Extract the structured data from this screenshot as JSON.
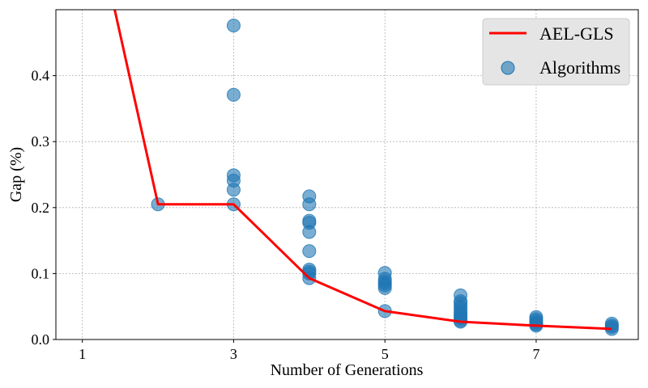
{
  "chart_data": {
    "type": "scatter",
    "title": "",
    "xlabel": "Number of Generations",
    "ylabel": "Gap (%)",
    "xlim": [
      0.65,
      8.35
    ],
    "ylim": [
      0.0,
      0.5
    ],
    "xticks": [
      1,
      3,
      5,
      7
    ],
    "yticks": [
      0.0,
      0.1,
      0.2,
      0.3,
      0.4
    ],
    "grid": true,
    "legend_position": "top-right",
    "series": [
      {
        "name": "AEL-GLS",
        "kind": "line",
        "color": "#ff0000",
        "x": [
          1,
          2,
          3,
          4,
          5,
          6,
          7,
          8
        ],
        "y": [
          0.72,
          0.205,
          0.205,
          0.093,
          0.043,
          0.027,
          0.021,
          0.016
        ]
      },
      {
        "name": "Algorithms",
        "kind": "scatter",
        "color": "#1f77b4",
        "x": [
          2,
          3,
          3,
          3,
          3,
          3,
          3,
          4,
          4,
          4,
          4,
          4,
          4,
          4,
          4,
          4,
          4,
          5,
          5,
          5,
          5,
          5,
          5,
          5,
          6,
          6,
          6,
          6,
          6,
          6,
          6,
          6,
          6,
          6,
          6,
          7,
          7,
          7,
          7,
          7,
          7,
          8,
          8,
          8,
          8
        ],
        "y": [
          0.205,
          0.476,
          0.371,
          0.249,
          0.241,
          0.227,
          0.205,
          0.217,
          0.205,
          0.18,
          0.177,
          0.163,
          0.134,
          0.106,
          0.103,
          0.1,
          0.093,
          0.101,
          0.092,
          0.088,
          0.085,
          0.082,
          0.078,
          0.043,
          0.067,
          0.058,
          0.055,
          0.05,
          0.046,
          0.042,
          0.038,
          0.035,
          0.032,
          0.029,
          0.027,
          0.034,
          0.031,
          0.028,
          0.025,
          0.023,
          0.021,
          0.024,
          0.021,
          0.019,
          0.016
        ]
      }
    ]
  }
}
